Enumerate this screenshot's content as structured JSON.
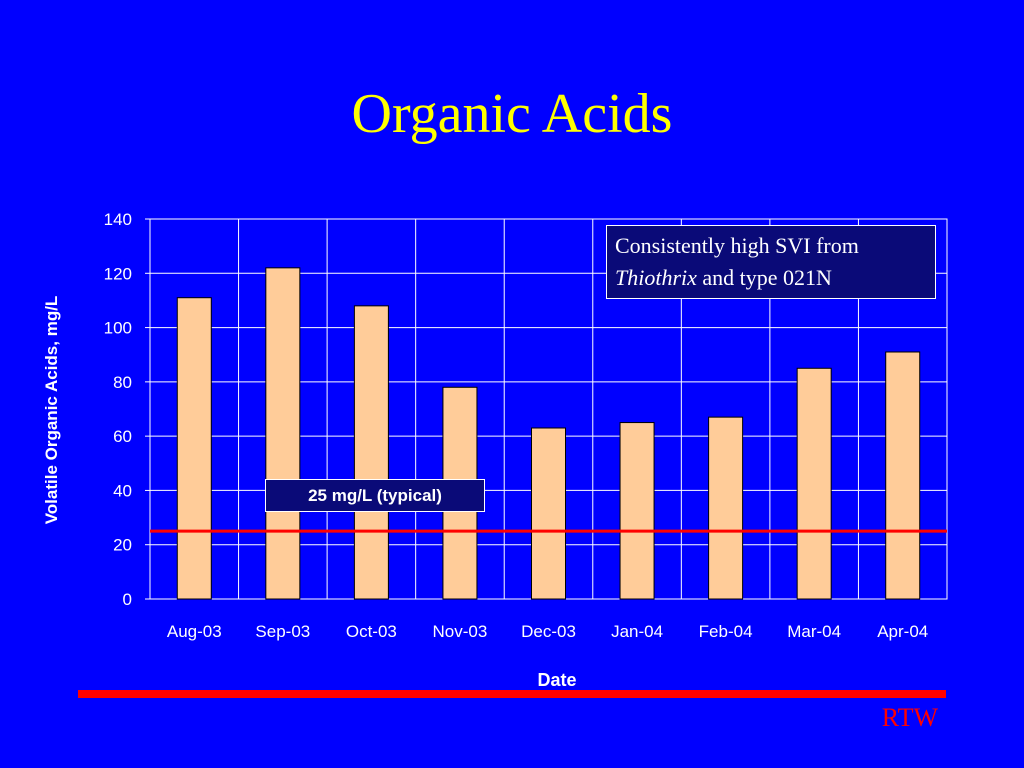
{
  "title": "Organic Acids",
  "callout": {
    "line1": "Consistently high SVI from",
    "italic": "Thiothrix",
    "rest": " and type 021N"
  },
  "reference_line": {
    "value": 25,
    "label": "25 mg/L (typical)",
    "color": "#ff0000"
  },
  "footer": {
    "mark": "RTW"
  },
  "colors": {
    "background": "#0000ff",
    "bar": "#ffcc99",
    "title": "#ffff00"
  },
  "chart_data": {
    "type": "bar",
    "categories": [
      "Aug-03",
      "Sep-03",
      "Oct-03",
      "Nov-03",
      "Dec-03",
      "Jan-04",
      "Feb-04",
      "Mar-04",
      "Apr-04"
    ],
    "values": [
      111,
      122,
      108,
      78,
      63,
      65,
      67,
      85,
      91
    ],
    "xlabel": "Date",
    "ylabel": "Volatile Organic Acids, mg/L",
    "ylim": [
      0,
      140
    ],
    "yticks": [
      0,
      20,
      40,
      60,
      80,
      100,
      120,
      140
    ],
    "grid": true,
    "legend": "none"
  }
}
